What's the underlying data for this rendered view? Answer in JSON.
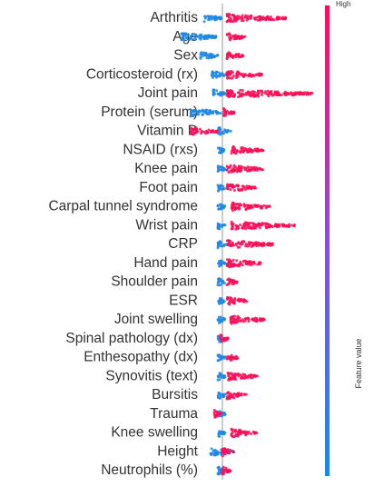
{
  "chart_data": {
    "type": "beeswarm",
    "categories": [
      "Arthritis",
      "Age",
      "Sex",
      "Corticosteroid (rx)",
      "Joint pain",
      "Protein (serum)",
      "Vitamin D",
      "NSAID (rxs)",
      "Knee pain",
      "Foot pain",
      "Carpal tunnel syndrome",
      "Wrist pain",
      "CRP",
      "Hand pain",
      "Shoulder pain",
      "ESR",
      "Joint swelling",
      "Spinal pathology (dx)",
      "Enthesopathy (dx)",
      "Synovitis (text)",
      "Bursitis",
      "Trauma",
      "Knee swelling",
      "Height",
      "Neutrophils (%)"
    ],
    "low_ranges": [
      [
        -0.4,
        0
      ],
      [
        -0.9,
        -0.1
      ],
      [
        -0.5,
        -0.1
      ],
      [
        -0.24,
        0.06
      ],
      [
        -0.2,
        0.06
      ],
      [
        -0.7,
        -0.04
      ],
      [
        -0.1,
        0.2
      ],
      [
        -0.1,
        0.06
      ],
      [
        -0.1,
        0.06
      ],
      [
        -0.1,
        0.06
      ],
      [
        -0.1,
        0.06
      ],
      [
        -0.1,
        0.06
      ],
      [
        -0.1,
        0.1
      ],
      [
        -0.1,
        0.06
      ],
      [
        -0.1,
        0.06
      ],
      [
        -0.1,
        0.06
      ],
      [
        -0.1,
        0.06
      ],
      [
        -0.1,
        0.06
      ],
      [
        -0.1,
        0.06
      ],
      [
        -0.1,
        0.06
      ],
      [
        -0.1,
        0.06
      ],
      [
        -0.1,
        0.06
      ],
      [
        -0.1,
        0.06
      ],
      [
        -0.26,
        0.26
      ],
      [
        -0.1,
        0.14
      ]
    ],
    "high_ranges": [
      [
        0.1,
        1.4
      ],
      [
        0.1,
        0.5
      ],
      [
        0.1,
        0.46
      ],
      [
        0.1,
        0.9
      ],
      [
        0.1,
        2.0
      ],
      [
        0.02,
        0.26
      ],
      [
        -0.7,
        -0.1
      ],
      [
        0.2,
        0.9
      ],
      [
        0.1,
        0.9
      ],
      [
        0.1,
        0.74
      ],
      [
        0.2,
        1.06
      ],
      [
        0.2,
        1.6
      ],
      [
        0.1,
        1.14
      ],
      [
        0.1,
        0.86
      ],
      [
        0.1,
        0.34
      ],
      [
        0.1,
        0.54
      ],
      [
        0.18,
        0.94
      ],
      [
        -0.04,
        0.14
      ],
      [
        0.1,
        0.34
      ],
      [
        0.1,
        0.78
      ],
      [
        0.1,
        0.54
      ],
      [
        -0.18,
        -0.02
      ],
      [
        0.2,
        0.76
      ],
      [
        0,
        0.26
      ],
      [
        0,
        0.2
      ]
    ],
    "xlim": [
      -0.9,
      2.1
    ],
    "low_color": "#1e88e5",
    "high_color": "#ff0d57",
    "colorbar_high": "High",
    "colorbar_label": "Feature value"
  }
}
